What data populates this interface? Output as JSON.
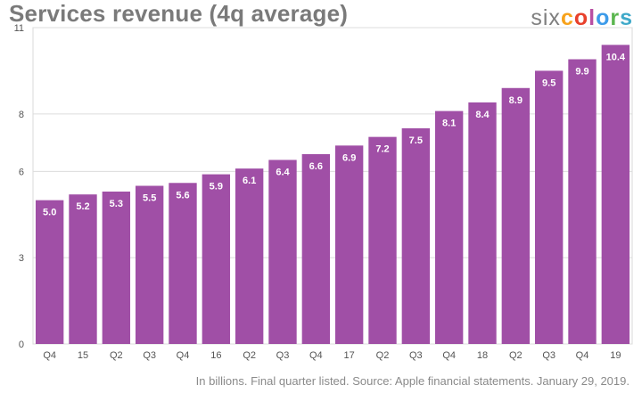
{
  "chart_data": {
    "type": "bar",
    "title": "Services revenue (4q average)",
    "footnote": "In billions. Final quarter listed. Source: Apple financial statements. January 29, 2019.",
    "categories": [
      "Q4",
      "15",
      "Q2",
      "Q3",
      "Q4",
      "16",
      "Q2",
      "Q3",
      "Q4",
      "17",
      "Q2",
      "Q3",
      "Q4",
      "18",
      "Q2",
      "Q3",
      "Q4",
      "19"
    ],
    "values": [
      5.0,
      5.2,
      5.3,
      5.5,
      5.6,
      5.9,
      6.1,
      6.4,
      6.6,
      6.9,
      7.2,
      7.5,
      8.1,
      8.4,
      8.9,
      9.5,
      9.9,
      10.4
    ],
    "value_labels": [
      "5.0",
      "5.2",
      "5.3",
      "5.5",
      "5.6",
      "5.9",
      "6.1",
      "6.4",
      "6.6",
      "6.9",
      "7.2",
      "7.5",
      "8.1",
      "8.4",
      "8.9",
      "9.5",
      "9.9",
      "10.4"
    ],
    "yticks": [
      0,
      3,
      6,
      8,
      11
    ],
    "ylim": [
      0,
      11
    ],
    "bar_color": "#a04fa6",
    "grid": true,
    "xlabel": "",
    "ylabel": ""
  },
  "logo": {
    "six": "six",
    "colors": [
      {
        "char": "c",
        "color": "#f7a21b"
      },
      {
        "char": "o",
        "color": "#e8412c"
      },
      {
        "char": "l",
        "color": "#b84fa3"
      },
      {
        "char": "o",
        "color": "#3d9be9"
      },
      {
        "char": "r",
        "color": "#5bb64f"
      },
      {
        "char": "s",
        "color": "#3fa9c9"
      }
    ]
  }
}
